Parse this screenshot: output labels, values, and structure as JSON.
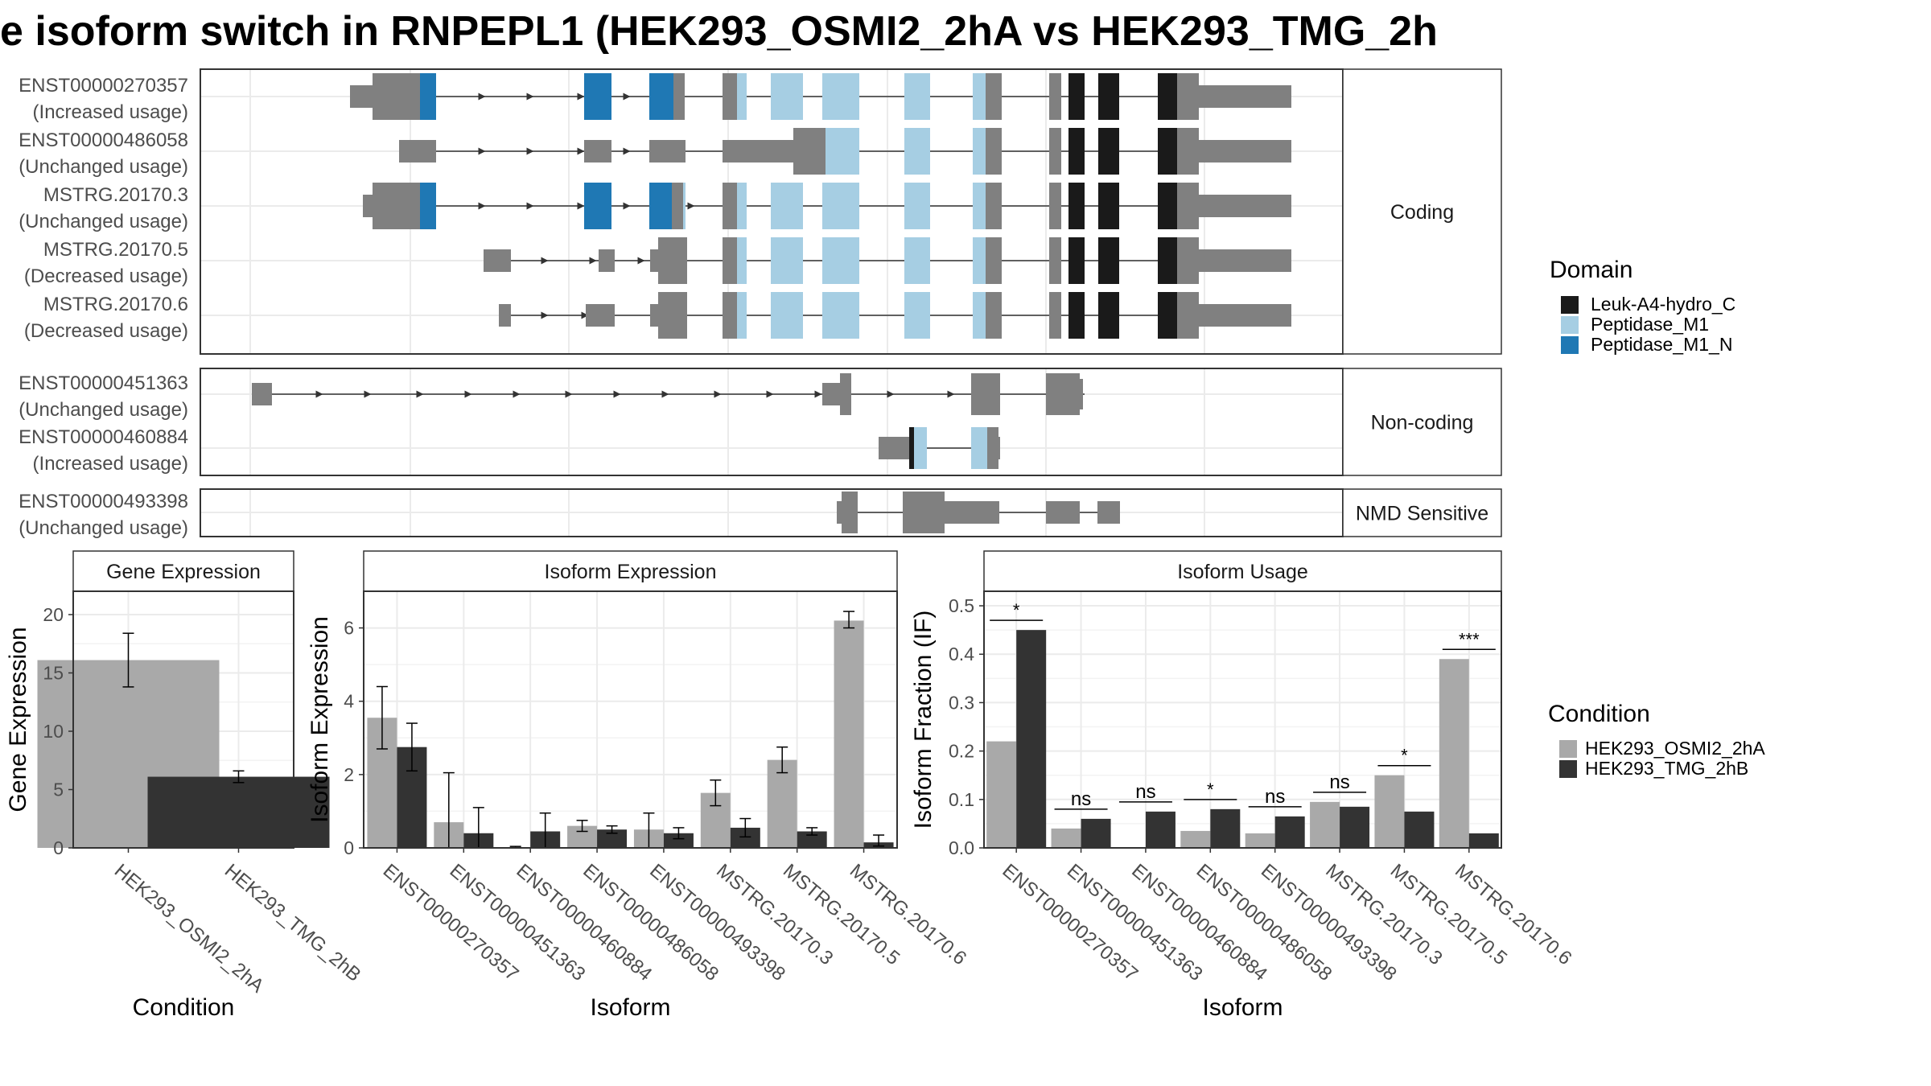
{
  "title": "e isoform switch in RNPEPL1 (HEK293_OSMI2_2hA vs HEK293_TMG_2h",
  "colors": {
    "condition_a": "#a9a9a9",
    "condition_b": "#333333",
    "exon": "#808080",
    "domain_leuk": "#1a1a1a",
    "domain_m1": "#a6cee3",
    "domain_m1n": "#1f78b4",
    "grid": "#ebebeb",
    "panel_border": "#333333"
  },
  "structure": {
    "facets": [
      {
        "label": "Coding",
        "isoforms": [
          {
            "id": "ENST00000270357",
            "usage": "(Increased usage)"
          },
          {
            "id": "ENST00000486058",
            "usage": "(Unchanged usage)"
          },
          {
            "id": "MSTRG.20170.3",
            "usage": "(Unchanged usage)"
          },
          {
            "id": "MSTRG.20170.5",
            "usage": "(Decreased usage)"
          },
          {
            "id": "MSTRG.20170.6",
            "usage": "(Decreased usage)"
          }
        ]
      },
      {
        "label": "Non-coding",
        "isoforms": [
          {
            "id": "ENST00000451363",
            "usage": "(Unchanged usage)"
          },
          {
            "id": "ENST00000460884",
            "usage": "(Increased usage)"
          }
        ]
      },
      {
        "label": "NMD Sensitive",
        "isoforms": [
          {
            "id": "ENST00000493398",
            "usage": "(Unchanged usage)"
          }
        ]
      }
    ]
  },
  "legends": {
    "domain": {
      "title": "Domain",
      "items": [
        "Leuk-A4-hydro_C",
        "Peptidase_M1",
        "Peptidase_M1_N"
      ]
    },
    "condition": {
      "title": "Condition",
      "items": [
        "HEK293_OSMI2_2hA",
        "HEK293_TMG_2hB"
      ]
    }
  },
  "chart_data": [
    {
      "type": "bar",
      "title": "Gene Expression",
      "xlabel": "Condition",
      "ylabel": "Gene Expression",
      "categories": [
        "HEK293_OSMI2_2hA",
        "HEK293_TMG_2hB"
      ],
      "values": [
        16.1,
        6.1
      ],
      "errors": [
        [
          13.8,
          18.4
        ],
        [
          5.6,
          6.6
        ]
      ],
      "ylim": [
        0,
        22
      ],
      "yticks": [
        0,
        5,
        10,
        15,
        20
      ]
    },
    {
      "type": "bar",
      "title": "Isoform Expression",
      "xlabel": "Isoform",
      "ylabel": "Isoform Expression",
      "categories": [
        "ENST00000270357",
        "ENST00000451363",
        "ENST00000460884",
        "ENST00000486058",
        "ENST00000493398",
        "MSTRG.20170.3",
        "MSTRG.20170.5",
        "MSTRG.20170.6"
      ],
      "series": [
        {
          "name": "HEK293_OSMI2_2hA",
          "values": [
            3.55,
            0.7,
            0.02,
            0.6,
            0.5,
            1.5,
            2.4,
            6.2
          ],
          "errors": [
            [
              2.7,
              4.4
            ],
            [
              0.0,
              2.05
            ],
            [
              0.0,
              0.04
            ],
            [
              0.45,
              0.75
            ],
            [
              0.0,
              0.95
            ],
            [
              1.15,
              1.85
            ],
            [
              2.05,
              2.75
            ],
            [
              6.0,
              6.45
            ]
          ]
        },
        {
          "name": "HEK293_TMG_2hB",
          "values": [
            2.75,
            0.4,
            0.45,
            0.5,
            0.4,
            0.55,
            0.45,
            0.15
          ],
          "errors": [
            [
              2.1,
              3.4
            ],
            [
              0.0,
              1.1
            ],
            [
              0.0,
              0.95
            ],
            [
              0.4,
              0.6
            ],
            [
              0.25,
              0.55
            ],
            [
              0.3,
              0.8
            ],
            [
              0.35,
              0.55
            ],
            [
              0.05,
              0.35
            ]
          ]
        }
      ],
      "ylim": [
        0,
        7
      ],
      "yticks": [
        0,
        2,
        4,
        6
      ]
    },
    {
      "type": "bar",
      "title": "Isoform Usage",
      "xlabel": "Isoform",
      "ylabel": "Isoform Fraction (IF)",
      "categories": [
        "ENST00000270357",
        "ENST00000451363",
        "ENST00000460884",
        "ENST00000486058",
        "ENST00000493398",
        "MSTRG.20170.3",
        "MSTRG.20170.5",
        "MSTRG.20170.6"
      ],
      "series": [
        {
          "name": "HEK293_OSMI2_2hA",
          "values": [
            0.22,
            0.04,
            0.0,
            0.035,
            0.03,
            0.095,
            0.15,
            0.39
          ]
        },
        {
          "name": "HEK293_TMG_2hB",
          "values": [
            0.45,
            0.06,
            0.075,
            0.08,
            0.065,
            0.085,
            0.075,
            0.03
          ]
        }
      ],
      "significance": [
        "*",
        "ns",
        "ns",
        "*",
        "ns",
        "ns",
        "*",
        "***"
      ],
      "ylim": [
        0,
        0.53
      ],
      "yticks": [
        0.0,
        0.1,
        0.2,
        0.3,
        0.4,
        0.5
      ]
    }
  ]
}
